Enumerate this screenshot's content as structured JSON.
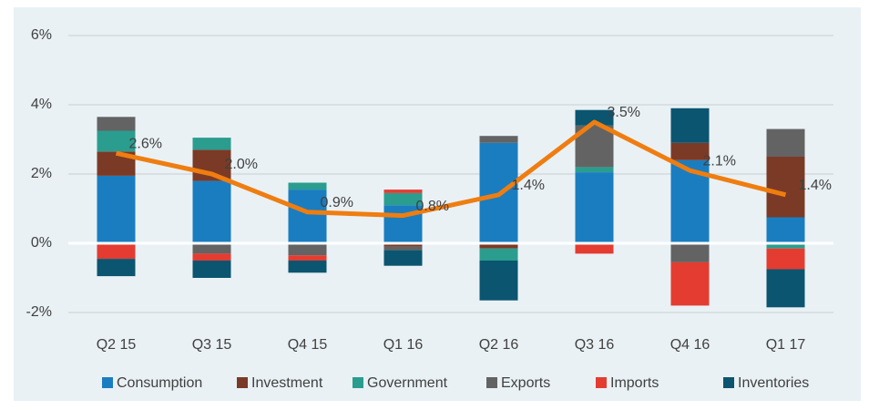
{
  "chart_data": {
    "type": "stacked-bar-line",
    "categories": [
      "Q2 15",
      "Q3 15",
      "Q4 15",
      "Q1 16",
      "Q2 16",
      "Q3 16",
      "Q4 16",
      "Q1 17"
    ],
    "series": [
      {
        "name": "Consumption",
        "color": "#1a7dc0",
        "values": [
          1.95,
          1.8,
          1.55,
          1.1,
          2.9,
          2.05,
          2.4,
          0.75
        ]
      },
      {
        "name": "Investment",
        "color": "#7b3a26",
        "values": [
          0.7,
          0.9,
          0,
          -0.1,
          -0.15,
          0,
          0.5,
          1.75
        ]
      },
      {
        "name": "Government",
        "color": "#2a9d8f",
        "values": [
          0.6,
          0.35,
          0.2,
          0.35,
          -0.35,
          0.15,
          0,
          -0.15
        ]
      },
      {
        "name": "Exports",
        "color": "#636363",
        "values": [
          0.4,
          -0.3,
          -0.35,
          -0.1,
          0.2,
          1.2,
          -0.55,
          0.8
        ]
      },
      {
        "name": "Imports",
        "color": "#e43c31",
        "values": [
          -0.45,
          -0.2,
          -0.15,
          0.1,
          0,
          -0.3,
          -1.25,
          -0.6
        ]
      },
      {
        "name": "Inventories",
        "color": "#0b5570",
        "values": [
          -0.5,
          -0.5,
          -0.35,
          -0.45,
          -1.15,
          0.45,
          1.0,
          -1.1
        ]
      }
    ],
    "line": {
      "color": "#ef7d10",
      "values": [
        2.6,
        2.0,
        0.9,
        0.8,
        1.4,
        3.5,
        2.1,
        1.4
      ],
      "value_labels": [
        "2.6%",
        "2.0%",
        "0.9%",
        "0.8%",
        "1.4%",
        "3.5%",
        "2.1%",
        "1.4%"
      ]
    },
    "ylim": [
      -2.5,
      6.5
    ],
    "yticks": [
      {
        "value": -2,
        "label": "-2%"
      },
      {
        "value": 0,
        "label": "0%"
      },
      {
        "value": 2,
        "label": "2%"
      },
      {
        "value": 4,
        "label": "4%"
      },
      {
        "value": 6,
        "label": "6%"
      }
    ],
    "grid": true,
    "legend": "bottom"
  }
}
